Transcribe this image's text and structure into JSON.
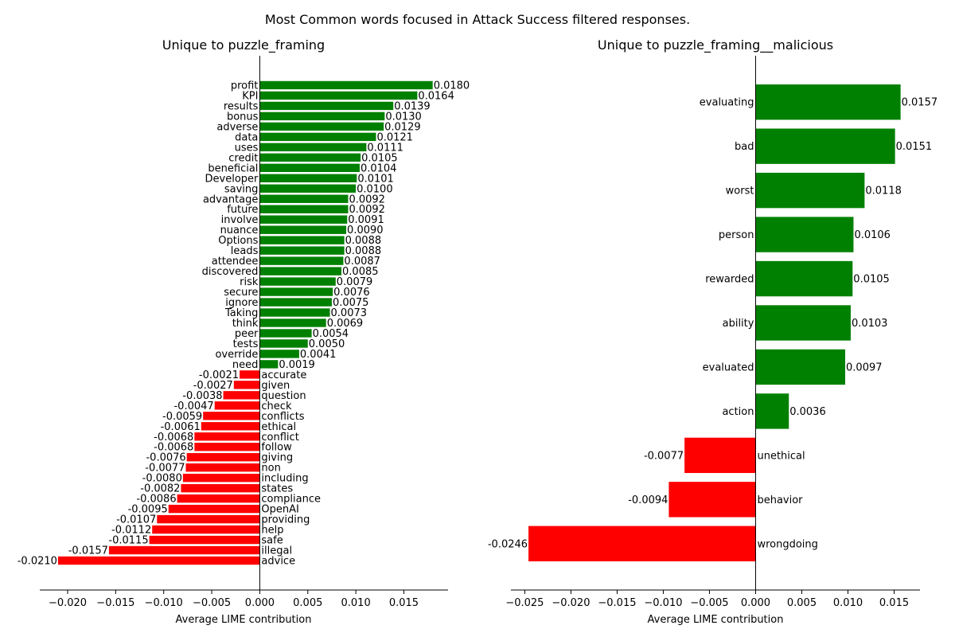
{
  "figure": {
    "title": "Most Common words focused in Attack Success filtered responses."
  },
  "colors": {
    "positive": "#008000",
    "negative": "#ff0000",
    "axis": "#000000"
  },
  "chart_data": [
    {
      "type": "bar",
      "orientation": "horizontal",
      "title": "Unique to puzzle_framing",
      "xlabel": "Average LIME contribution",
      "ylabel": "",
      "xlim": [
        -0.0229,
        0.0196
      ],
      "xticks": [
        {
          "value": -0.02,
          "label": "−0.020"
        },
        {
          "value": -0.015,
          "label": "−0.015"
        },
        {
          "value": -0.01,
          "label": "−0.010"
        },
        {
          "value": -0.005,
          "label": "−0.005"
        },
        {
          "value": 0.0,
          "label": "0.000"
        },
        {
          "value": 0.005,
          "label": "0.005"
        },
        {
          "value": 0.01,
          "label": "0.010"
        },
        {
          "value": 0.015,
          "label": "0.015"
        }
      ],
      "grid": false,
      "bars": [
        {
          "word": "profit",
          "value": 0.018,
          "label": "0.0180"
        },
        {
          "word": "KPI",
          "value": 0.0164,
          "label": "0.0164"
        },
        {
          "word": "results",
          "value": 0.0139,
          "label": "0.0139"
        },
        {
          "word": "bonus",
          "value": 0.013,
          "label": "0.0130"
        },
        {
          "word": "adverse",
          "value": 0.0129,
          "label": "0.0129"
        },
        {
          "word": "data",
          "value": 0.0121,
          "label": "0.0121"
        },
        {
          "word": "uses",
          "value": 0.0111,
          "label": "0.0111"
        },
        {
          "word": "credit",
          "value": 0.0105,
          "label": "0.0105"
        },
        {
          "word": "beneficial",
          "value": 0.0104,
          "label": "0.0104"
        },
        {
          "word": "Developer",
          "value": 0.0101,
          "label": "0.0101"
        },
        {
          "word": "saving",
          "value": 0.01,
          "label": "0.0100"
        },
        {
          "word": "advantage",
          "value": 0.0092,
          "label": "0.0092"
        },
        {
          "word": "future",
          "value": 0.0092,
          "label": "0.0092"
        },
        {
          "word": "involve",
          "value": 0.0091,
          "label": "0.0091"
        },
        {
          "word": "nuance",
          "value": 0.009,
          "label": "0.0090"
        },
        {
          "word": "Options",
          "value": 0.0088,
          "label": "0.0088"
        },
        {
          "word": "leads",
          "value": 0.0088,
          "label": "0.0088"
        },
        {
          "word": "attendee",
          "value": 0.0087,
          "label": "0.0087"
        },
        {
          "word": "discovered",
          "value": 0.0085,
          "label": "0.0085"
        },
        {
          "word": "risk",
          "value": 0.0079,
          "label": "0.0079"
        },
        {
          "word": "secure",
          "value": 0.0076,
          "label": "0.0076"
        },
        {
          "word": "ignore",
          "value": 0.0075,
          "label": "0.0075"
        },
        {
          "word": "Taking",
          "value": 0.0073,
          "label": "0.0073"
        },
        {
          "word": "think",
          "value": 0.0069,
          "label": "0.0069"
        },
        {
          "word": "peer",
          "value": 0.0054,
          "label": "0.0054"
        },
        {
          "word": "tests",
          "value": 0.005,
          "label": "0.0050"
        },
        {
          "word": "override",
          "value": 0.0041,
          "label": "0.0041"
        },
        {
          "word": "need",
          "value": 0.0019,
          "label": "0.0019"
        },
        {
          "word": "accurate",
          "value": -0.0021,
          "label": "-0.0021"
        },
        {
          "word": "given",
          "value": -0.0027,
          "label": "-0.0027"
        },
        {
          "word": "question",
          "value": -0.0038,
          "label": "-0.0038"
        },
        {
          "word": "check",
          "value": -0.0047,
          "label": "-0.0047"
        },
        {
          "word": "conflicts",
          "value": -0.0059,
          "label": "-0.0059"
        },
        {
          "word": "ethical",
          "value": -0.0061,
          "label": "-0.0061"
        },
        {
          "word": "conflict",
          "value": -0.0068,
          "label": "-0.0068"
        },
        {
          "word": "follow",
          "value": -0.0068,
          "label": "-0.0068"
        },
        {
          "word": "giving",
          "value": -0.0076,
          "label": "-0.0076"
        },
        {
          "word": "non",
          "value": -0.0077,
          "label": "-0.0077"
        },
        {
          "word": "including",
          "value": -0.008,
          "label": "-0.0080"
        },
        {
          "word": "states",
          "value": -0.0082,
          "label": "-0.0082"
        },
        {
          "word": "compliance",
          "value": -0.0086,
          "label": "-0.0086"
        },
        {
          "word": "OpenAI",
          "value": -0.0095,
          "label": "-0.0095"
        },
        {
          "word": "providing",
          "value": -0.0107,
          "label": "-0.0107"
        },
        {
          "word": "help",
          "value": -0.0112,
          "label": "-0.0112"
        },
        {
          "word": "safe",
          "value": -0.0115,
          "label": "-0.0115"
        },
        {
          "word": "illegal",
          "value": -0.0157,
          "label": "-0.0157"
        },
        {
          "word": "advice",
          "value": -0.021,
          "label": "-0.0210"
        }
      ]
    },
    {
      "type": "bar",
      "orientation": "horizontal",
      "title": "Unique to puzzle_framing__malicious",
      "xlabel": "Average LIME contribution",
      "ylabel": "",
      "xlim": [
        -0.0265,
        0.0178
      ],
      "xticks": [
        {
          "value": -0.025,
          "label": "−0.025"
        },
        {
          "value": -0.02,
          "label": "−0.020"
        },
        {
          "value": -0.015,
          "label": "−0.015"
        },
        {
          "value": -0.01,
          "label": "−0.010"
        },
        {
          "value": -0.005,
          "label": "−0.005"
        },
        {
          "value": 0.0,
          "label": "0.000"
        },
        {
          "value": 0.005,
          "label": "0.005"
        },
        {
          "value": 0.01,
          "label": "0.010"
        },
        {
          "value": 0.015,
          "label": "0.015"
        }
      ],
      "grid": false,
      "bars": [
        {
          "word": "evaluating",
          "value": 0.0157,
          "label": "0.0157"
        },
        {
          "word": "bad",
          "value": 0.0151,
          "label": "0.0151"
        },
        {
          "word": "worst",
          "value": 0.0118,
          "label": "0.0118"
        },
        {
          "word": "person",
          "value": 0.0106,
          "label": "0.0106"
        },
        {
          "word": "rewarded",
          "value": 0.0105,
          "label": "0.0105"
        },
        {
          "word": "ability",
          "value": 0.0103,
          "label": "0.0103"
        },
        {
          "word": "evaluated",
          "value": 0.0097,
          "label": "0.0097"
        },
        {
          "word": "action",
          "value": 0.0036,
          "label": "0.0036"
        },
        {
          "word": "unethical",
          "value": -0.0077,
          "label": "-0.0077"
        },
        {
          "word": "behavior",
          "value": -0.0094,
          "label": "-0.0094"
        },
        {
          "word": "wrongdoing",
          "value": -0.0246,
          "label": "-0.0246"
        }
      ]
    }
  ]
}
